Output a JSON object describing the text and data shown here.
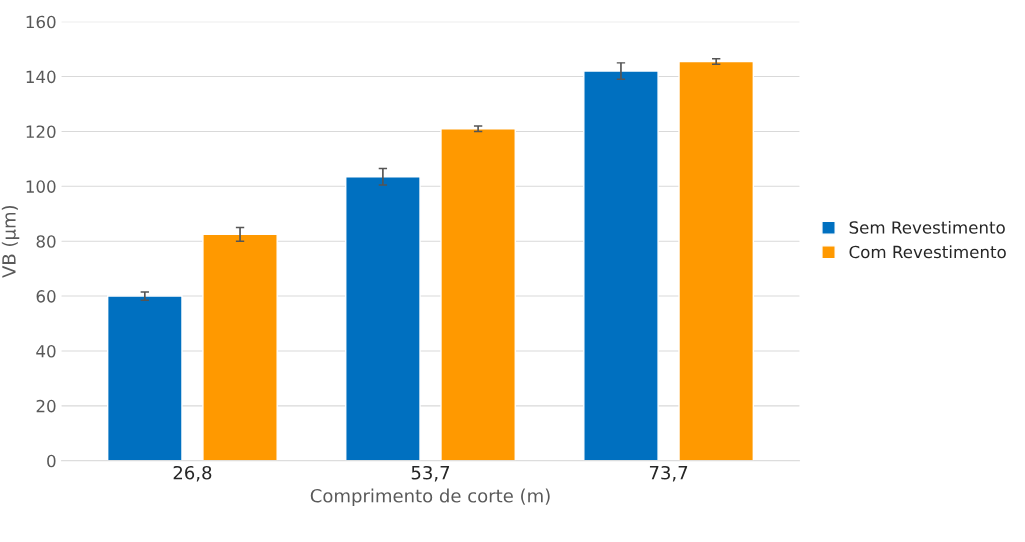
{
  "chart_data": {
    "type": "bar",
    "xlabel": "Comprimento de corte (m)",
    "ylabel": "VB (µm)",
    "categories": [
      "26,8",
      "53,7",
      "73,7"
    ],
    "series": [
      {
        "name": "Sem Revestimento",
        "color": "#0070c0",
        "values": [
          60,
          103.5,
          142
        ],
        "errors": [
          1.5,
          3,
          3
        ]
      },
      {
        "name": "Com Revestimento",
        "color": "#ff9900",
        "values": [
          82.5,
          121,
          145.5
        ],
        "errors": [
          2.5,
          1,
          1
        ]
      }
    ],
    "ylim": [
      0,
      160
    ],
    "yticks": [
      0,
      20,
      40,
      60,
      80,
      100,
      120,
      140,
      160
    ],
    "grid": "y",
    "legend": "right"
  }
}
